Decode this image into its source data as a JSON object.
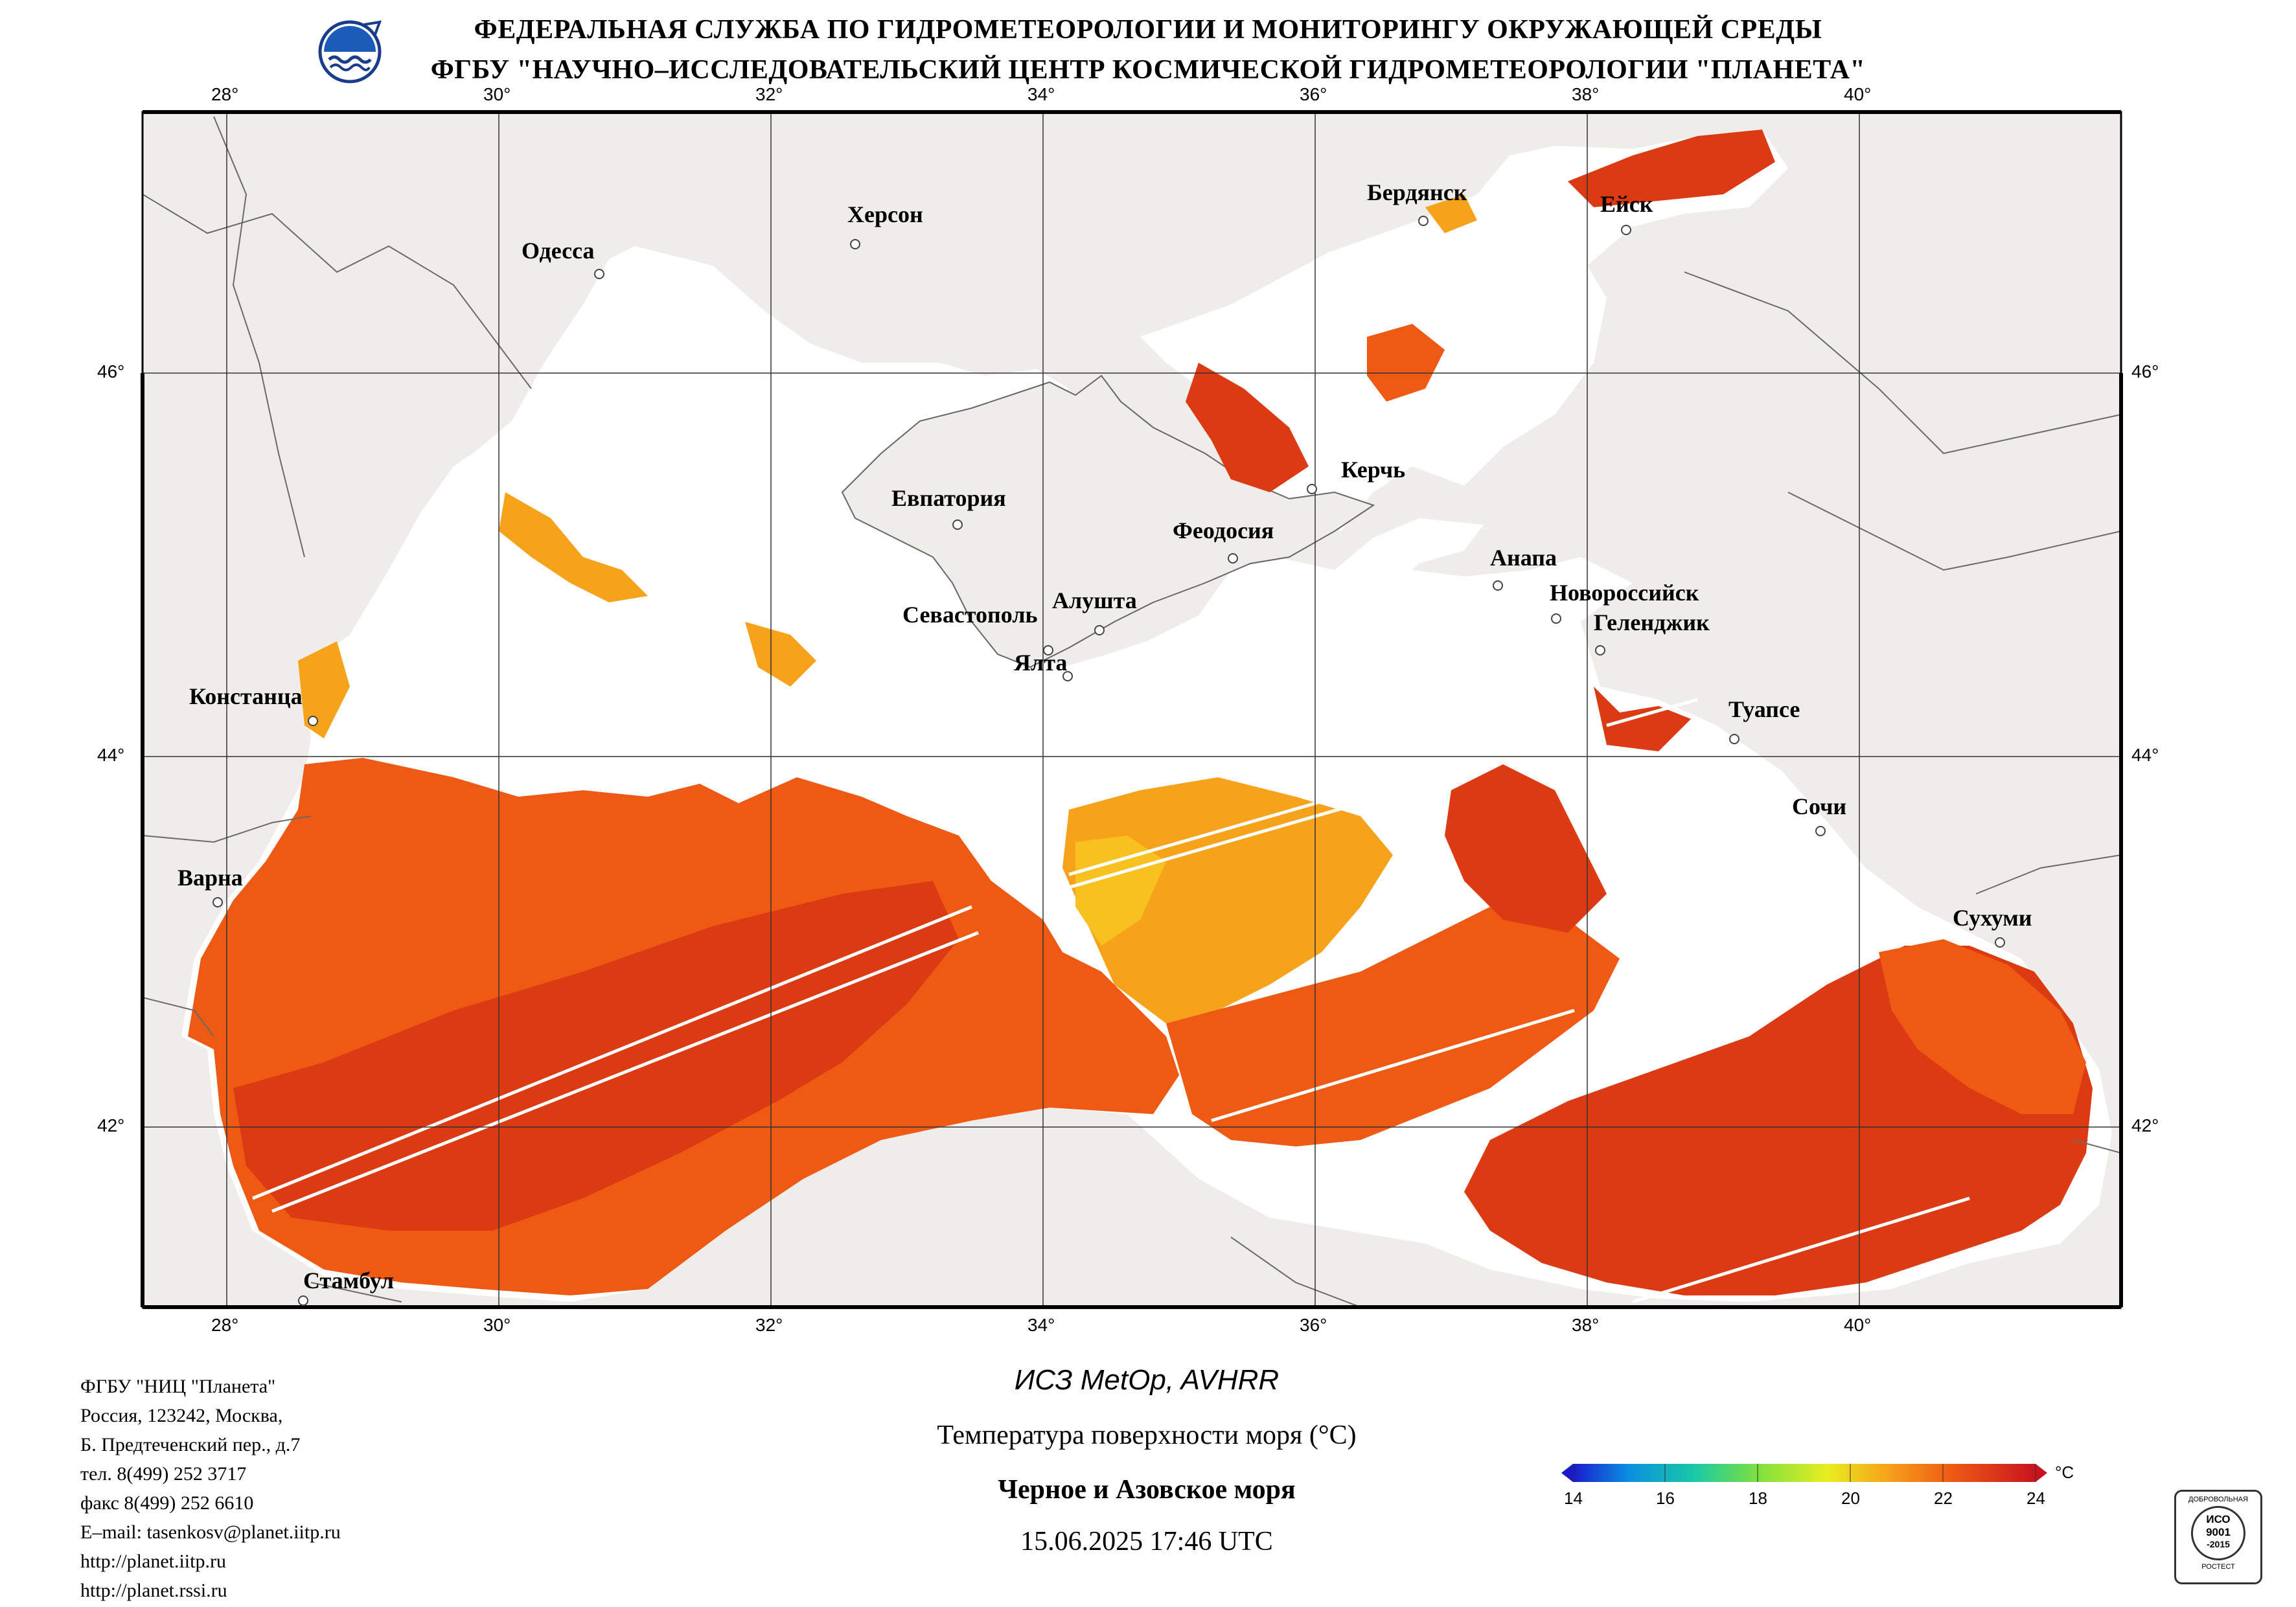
{
  "header": {
    "line1": "ФЕДЕРАЛЬНАЯ СЛУЖБА ПО ГИДРОМЕТЕОРОЛОГИИ И МОНИТОРИНГУ ОКРУЖАЮЩЕЙ СРЕДЫ",
    "line2": "ФГБУ \"НАУЧНО–ИССЛЕДОВАТЕЛЬСКИЙ ЦЕНТР КОСМИЧЕСКОЙ ГИДРОМЕТЕОРОЛОГИИ \"ПЛАНЕТА\""
  },
  "map": {
    "lon_labels": [
      "28°",
      "30°",
      "32°",
      "34°",
      "36°",
      "38°",
      "40°"
    ],
    "lat_labels": [
      "46°",
      "44°",
      "42°"
    ],
    "cities": [
      {
        "name": "Одесса"
      },
      {
        "name": "Херсон"
      },
      {
        "name": "Бердянск"
      },
      {
        "name": "Ейск"
      },
      {
        "name": "Евпатория"
      },
      {
        "name": "Керчь"
      },
      {
        "name": "Феодосия"
      },
      {
        "name": "Анапа"
      },
      {
        "name": "Севастополь"
      },
      {
        "name": "Алушта"
      },
      {
        "name": "Новороссийск"
      },
      {
        "name": "Ялта"
      },
      {
        "name": "Геленджик"
      },
      {
        "name": "Констанца"
      },
      {
        "name": "Туапсе"
      },
      {
        "name": "Сочи"
      },
      {
        "name": "Варна"
      },
      {
        "name": "Сухуми"
      },
      {
        "name": "Стамбул"
      }
    ],
    "colors": {
      "land": "#efedea",
      "sea_nodata": "#ffffff",
      "sst_main": "#ee5a14",
      "sst_warm": "#dc3a12",
      "sst_cool": "#f6a21a"
    }
  },
  "footer": {
    "address": [
      "ФГБУ \"НИЦ \"Планета\"",
      "Россия, 123242, Москва,",
      "Б. Предтеченский пер., д.7",
      "тел. 8(499) 252 3717",
      "факс 8(499) 252 6610",
      "E–mail: tasenkosv@planet.iitp.ru",
      "http://planet.iitp.ru",
      "http://planet.rssi.ru"
    ],
    "satellite": "ИСЗ MetOp, AVHRR",
    "product": "Температура поверхности моря (°C)",
    "region": "Черное и Азовское моря",
    "datetime": "15.06.2025 17:46 UTC",
    "iso_badge": [
      "ДОБРОВОЛЬНАЯ",
      "ИСО",
      "9001",
      "-2015",
      "РОСТЕСТ"
    ]
  },
  "colorbar": {
    "unit": "°C",
    "ticks": [
      "14",
      "16",
      "18",
      "20",
      "22",
      "24"
    ],
    "min": 14,
    "max": 24,
    "stops": [
      "#1a1acc",
      "#0a8fe0",
      "#18c8a8",
      "#7ee040",
      "#e8ee20",
      "#f6a21a",
      "#ee5a14",
      "#c8141e"
    ]
  }
}
